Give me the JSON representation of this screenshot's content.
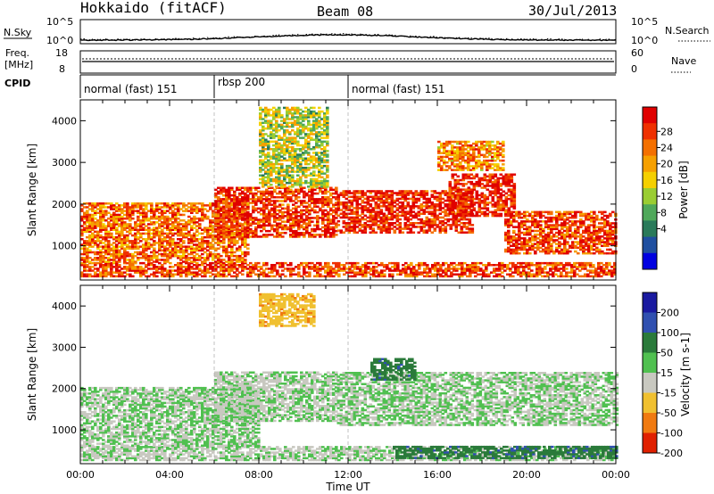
{
  "header": {
    "title": "Hokkaido (fitACF)",
    "beam": "Beam 08",
    "date": "30/Jul/2013"
  },
  "top_panels": {
    "nsky_label": "N.Sky",
    "nsky_ticks": [
      "10^5",
      "10^0"
    ],
    "nsky_right_ticks": [
      "10^5",
      "10^0"
    ],
    "nsearch_label": "N.Search",
    "freq_label_line1": "Freq.",
    "freq_label_line2": "[MHz]",
    "freq_ticks": [
      "18",
      "8"
    ],
    "nave_ticks": [
      "60",
      "0"
    ],
    "nave_label": "Nave",
    "cpid_label": "CPID",
    "cpid_segments": [
      {
        "label": "normal (fast) 151",
        "start_hour": 0,
        "end_hour": 6
      },
      {
        "label": "rbsp 200",
        "start_hour": 6,
        "end_hour": 12
      },
      {
        "label": "normal (fast) 151",
        "start_hour": 12,
        "end_hour": 24
      }
    ]
  },
  "chart_data": [
    {
      "type": "heatmap",
      "name": "power",
      "ylabel": "Slant Range [km]",
      "xlabel": "",
      "xlim": [
        0,
        24
      ],
      "ylim": [
        180,
        4500
      ],
      "yticks": [
        "1000",
        "2000",
        "3000",
        "4000"
      ],
      "colorbar_label": "Power [dB]",
      "colorbar_ticks": [
        "28",
        "24",
        "20",
        "16",
        "12",
        "8",
        "4"
      ],
      "colorbar_colors": [
        "#0000e0",
        "#1f4fa0",
        "#2a7a5a",
        "#4fa85a",
        "#9acd32",
        "#f5d000",
        "#f6a000",
        "#f47000",
        "#ef3000",
        "#e00000"
      ],
      "echo_regions": [
        {
          "t0": 0,
          "t1": 24,
          "r0": 250,
          "r1": 600,
          "level": 24
        },
        {
          "t0": 0,
          "t1": 7.5,
          "r0": 600,
          "r1": 2000,
          "level": 22
        },
        {
          "t0": 6,
          "t1": 11.5,
          "r0": 1200,
          "r1": 2400,
          "level": 25
        },
        {
          "t0": 8,
          "t1": 11,
          "r0": 2400,
          "r1": 4300,
          "level": 14
        },
        {
          "t0": 11.5,
          "t1": 17.5,
          "r0": 1300,
          "r1": 2300,
          "level": 26
        },
        {
          "t0": 16.5,
          "t1": 19.5,
          "r0": 1700,
          "r1": 2700,
          "level": 26
        },
        {
          "t0": 19,
          "t1": 24,
          "r0": 800,
          "r1": 1800,
          "level": 24
        },
        {
          "t0": 16,
          "t1": 19,
          "r0": 2800,
          "r1": 3500,
          "level": 20
        }
      ]
    },
    {
      "type": "heatmap",
      "name": "velocity",
      "ylabel": "Slant Range [km]",
      "xlabel": "Time UT",
      "xlim": [
        0,
        24
      ],
      "ylim": [
        180,
        4500
      ],
      "xticks": [
        "00:00",
        "04:00",
        "08:00",
        "12:00",
        "16:00",
        "20:00",
        "00:00"
      ],
      "yticks": [
        "1000",
        "2000",
        "3000",
        "4000"
      ],
      "colorbar_label": "Velocity [m s-1]",
      "colorbar_ticks": [
        "200",
        "100",
        "50",
        "15",
        "-15",
        "-50",
        "-100",
        "-200"
      ],
      "colorbar_colors": [
        "#1a1aa0",
        "#3050b0",
        "#2a7a3a",
        "#50c050",
        "#c8c8c0",
        "#f0c030",
        "#f07a10",
        "#e02000"
      ],
      "echo_regions": [
        {
          "t0": 0,
          "t1": 24,
          "r0": 250,
          "r1": 600,
          "vel": 0
        },
        {
          "t0": 0,
          "t1": 8,
          "r0": 600,
          "r1": 2000,
          "vel": 5
        },
        {
          "t0": 6,
          "t1": 11.5,
          "r0": 1200,
          "r1": 2400,
          "vel": 0
        },
        {
          "t0": 8,
          "t1": 10.5,
          "r0": 3500,
          "r1": 4300,
          "vel": -60
        },
        {
          "t0": 11.5,
          "t1": 24,
          "r0": 1100,
          "r1": 2400,
          "vel": 5
        },
        {
          "t0": 13,
          "t1": 15,
          "r0": 2200,
          "r1": 2700,
          "vel": 60
        },
        {
          "t0": 14,
          "t1": 24,
          "r0": 300,
          "r1": 600,
          "vel": 60
        }
      ]
    }
  ]
}
